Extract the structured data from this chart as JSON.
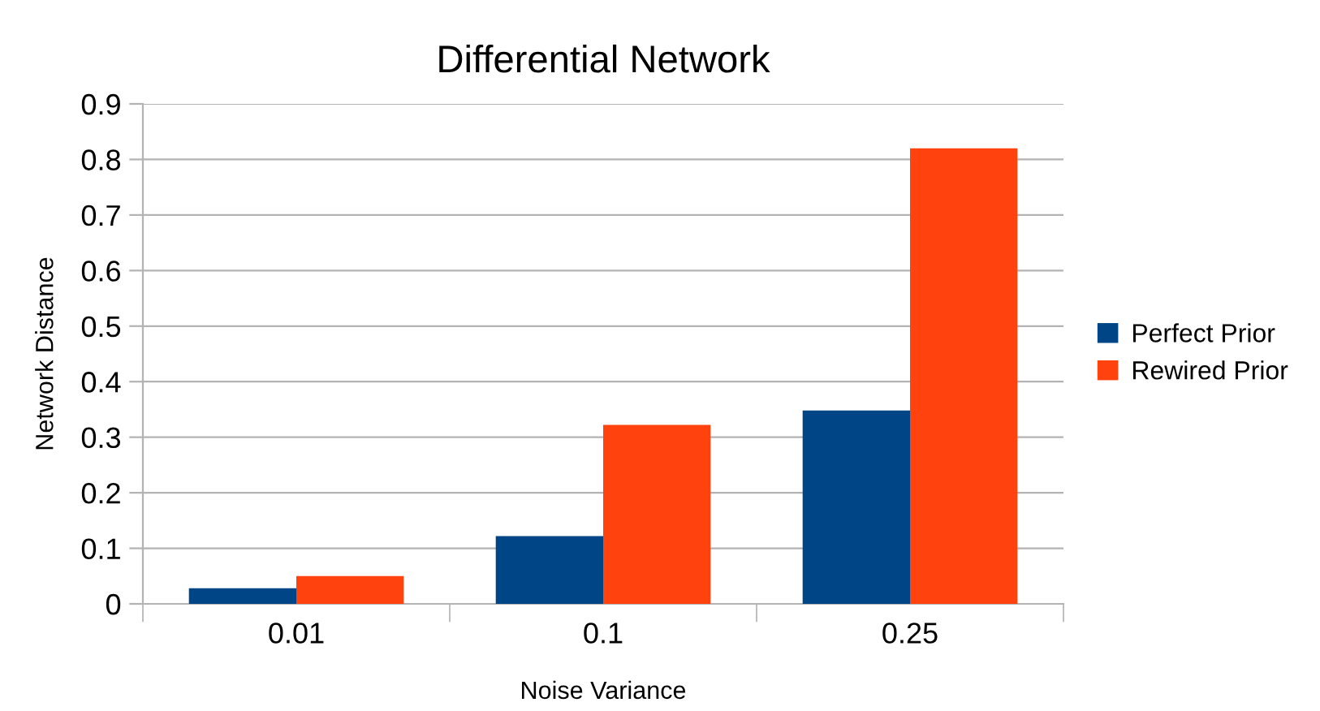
{
  "chart_data": {
    "type": "bar",
    "title": "Differential Network",
    "xlabel": "Noise Variance",
    "ylabel": "Network Distance",
    "categories": [
      "0.01",
      "0.1",
      "0.25"
    ],
    "series": [
      {
        "name": "Perfect Prior",
        "color": "#004586",
        "values": [
          0.028,
          0.122,
          0.348
        ]
      },
      {
        "name": "Rewired Prior",
        "color": "#ff420e",
        "values": [
          0.05,
          0.322,
          0.82
        ]
      }
    ],
    "ylim": [
      0,
      0.9
    ],
    "yticks": [
      0,
      0.1,
      0.2,
      0.3,
      0.4,
      0.5,
      0.6,
      0.7,
      0.8,
      0.9
    ],
    "grid": "y",
    "legend": "right"
  }
}
